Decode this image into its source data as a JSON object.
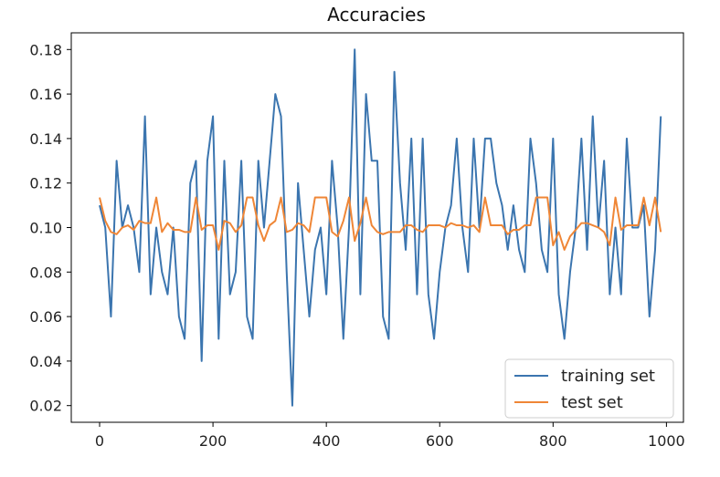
{
  "chart_data": {
    "type": "line",
    "title": "Accuracies",
    "xlabel": "",
    "ylabel": "",
    "xlim": [
      -50,
      1030
    ],
    "ylim": [
      0.0125,
      0.1875
    ],
    "x_ticks": [
      0,
      200,
      400,
      600,
      800,
      1000
    ],
    "x_tick_labels": [
      "0",
      "200",
      "400",
      "600",
      "800",
      "1000"
    ],
    "y_ticks": [
      0.02,
      0.04,
      0.06,
      0.08,
      0.1,
      0.12,
      0.14,
      0.16,
      0.18
    ],
    "y_tick_labels": [
      "0.02",
      "0.04",
      "0.06",
      "0.08",
      "0.10",
      "0.12",
      "0.14",
      "0.16",
      "0.18"
    ],
    "grid": false,
    "legend_position": "lower-right",
    "x": [
      0,
      10,
      20,
      30,
      40,
      50,
      60,
      70,
      80,
      90,
      100,
      110,
      120,
      130,
      140,
      150,
      160,
      170,
      180,
      190,
      200,
      210,
      220,
      230,
      240,
      250,
      260,
      270,
      280,
      290,
      300,
      310,
      320,
      330,
      340,
      350,
      360,
      370,
      380,
      390,
      400,
      410,
      420,
      430,
      440,
      450,
      460,
      470,
      480,
      490,
      500,
      510,
      520,
      530,
      540,
      550,
      560,
      570,
      580,
      590,
      600,
      610,
      620,
      630,
      640,
      650,
      660,
      670,
      680,
      690,
      700,
      710,
      720,
      730,
      740,
      750,
      760,
      770,
      780,
      790,
      800,
      810,
      820,
      830,
      840,
      850,
      860,
      870,
      880,
      890,
      900,
      910,
      920,
      930,
      940,
      950,
      960,
      970,
      980,
      990
    ],
    "series": [
      {
        "name": "training set",
        "color": "#3b75af",
        "values": [
          0.11,
          0.1,
          0.06,
          0.13,
          0.1,
          0.11,
          0.1,
          0.08,
          0.15,
          0.07,
          0.1,
          0.08,
          0.07,
          0.1,
          0.06,
          0.05,
          0.12,
          0.13,
          0.04,
          0.13,
          0.15,
          0.05,
          0.13,
          0.07,
          0.08,
          0.13,
          0.06,
          0.05,
          0.13,
          0.1,
          0.13,
          0.16,
          0.15,
          0.08,
          0.02,
          0.12,
          0.09,
          0.06,
          0.09,
          0.1,
          0.07,
          0.13,
          0.1,
          0.05,
          0.1,
          0.18,
          0.07,
          0.16,
          0.13,
          0.13,
          0.06,
          0.05,
          0.17,
          0.12,
          0.09,
          0.14,
          0.07,
          0.14,
          0.07,
          0.05,
          0.08,
          0.1,
          0.11,
          0.14,
          0.1,
          0.08,
          0.14,
          0.1,
          0.14,
          0.14,
          0.12,
          0.11,
          0.09,
          0.11,
          0.09,
          0.08,
          0.14,
          0.12,
          0.09,
          0.08,
          0.14,
          0.07,
          0.05,
          0.08,
          0.1,
          0.14,
          0.09,
          0.15,
          0.1,
          0.13,
          0.07,
          0.1,
          0.07,
          0.14,
          0.1,
          0.1,
          0.11,
          0.06,
          0.09,
          0.15
        ]
      },
      {
        "name": "test set",
        "color": "#ef8636",
        "values": [
          0.1135,
          0.103,
          0.098,
          0.097,
          0.1,
          0.101,
          0.099,
          0.103,
          0.102,
          0.102,
          0.1135,
          0.098,
          0.102,
          0.099,
          0.099,
          0.098,
          0.098,
          0.1135,
          0.099,
          0.101,
          0.101,
          0.09,
          0.103,
          0.102,
          0.098,
          0.101,
          0.1135,
          0.1135,
          0.101,
          0.094,
          0.101,
          0.103,
          0.1135,
          0.098,
          0.099,
          0.102,
          0.101,
          0.098,
          0.1135,
          0.1135,
          0.1135,
          0.098,
          0.096,
          0.103,
          0.1135,
          0.094,
          0.102,
          0.1135,
          0.101,
          0.098,
          0.097,
          0.098,
          0.098,
          0.098,
          0.101,
          0.101,
          0.099,
          0.098,
          0.101,
          0.101,
          0.101,
          0.1,
          0.102,
          0.101,
          0.101,
          0.1,
          0.101,
          0.098,
          0.1135,
          0.101,
          0.101,
          0.101,
          0.097,
          0.099,
          0.099,
          0.101,
          0.101,
          0.1135,
          0.1135,
          0.1135,
          0.092,
          0.098,
          0.09,
          0.096,
          0.099,
          0.102,
          0.102,
          0.101,
          0.1,
          0.098,
          0.092,
          0.1135,
          0.099,
          0.101,
          0.101,
          0.101,
          0.1135,
          0.101,
          0.1135,
          0.098
        ]
      }
    ]
  }
}
